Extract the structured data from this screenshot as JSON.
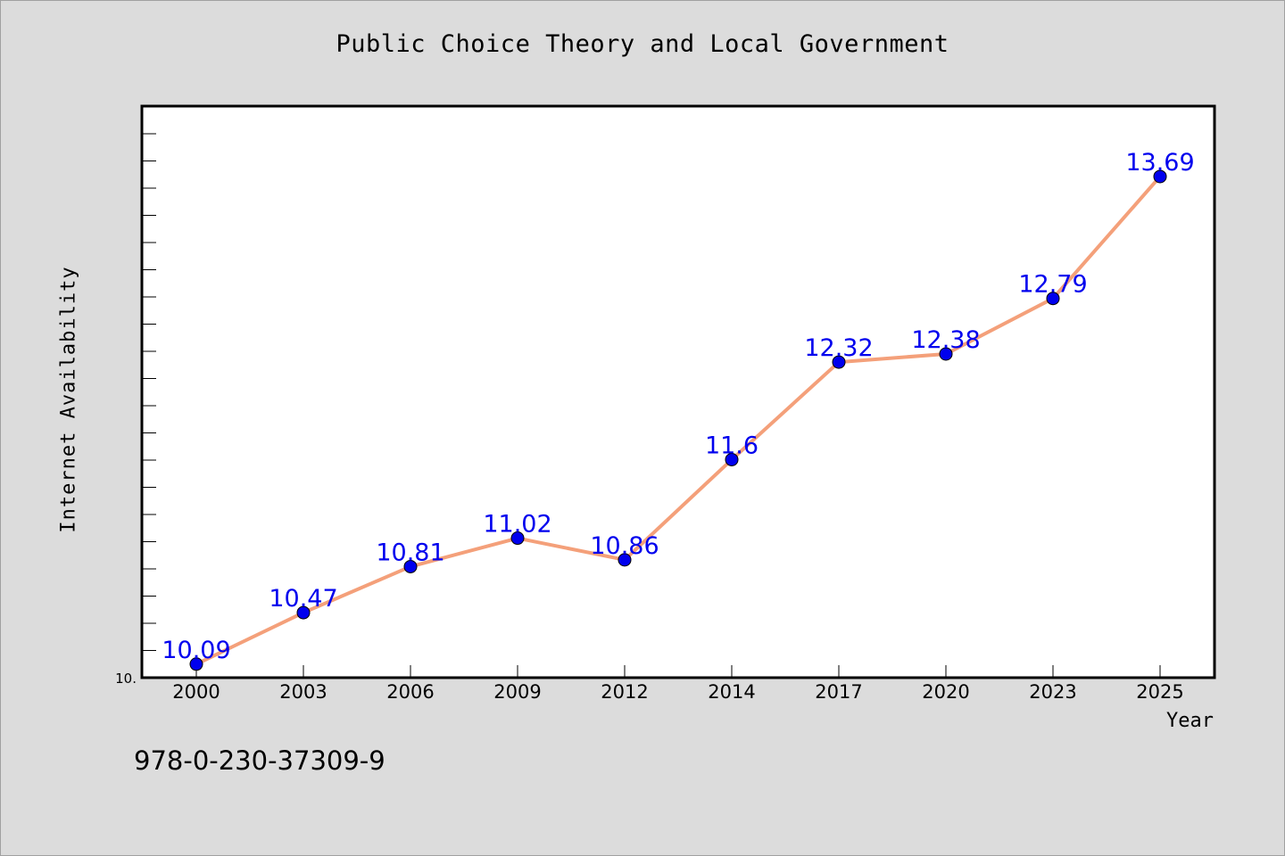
{
  "chart_data": {
    "type": "line",
    "title": "Public Choice Theory and Local Government",
    "xlabel": "Year",
    "ylabel": "Internet Availability",
    "categories": [
      "2000",
      "2003",
      "2006",
      "2009",
      "2012",
      "2014",
      "2017",
      "2020",
      "2023",
      "2025"
    ],
    "series": [
      {
        "values": [
          10.09,
          10.47,
          10.81,
          11.02,
          10.86,
          11.6,
          12.32,
          12.38,
          12.79,
          13.69
        ],
        "data_labels": [
          "10.09",
          "10.47",
          "10.81",
          "11.02",
          "10.86",
          "11.6",
          "12.32",
          "12.38",
          "12.79",
          "13.69"
        ],
        "line_color": "#f4a07a",
        "marker_color": "#0000ee"
      }
    ],
    "y_tick_label": "10.",
    "ylim": [
      9.99,
      14.21
    ],
    "grid": false,
    "legend": "none"
  },
  "footer": {
    "isbn": "978-0-230-37309-9"
  },
  "colors": {
    "background": "#dcdcdc",
    "plot_background": "#ffffff",
    "label_color": "#0000ee"
  }
}
